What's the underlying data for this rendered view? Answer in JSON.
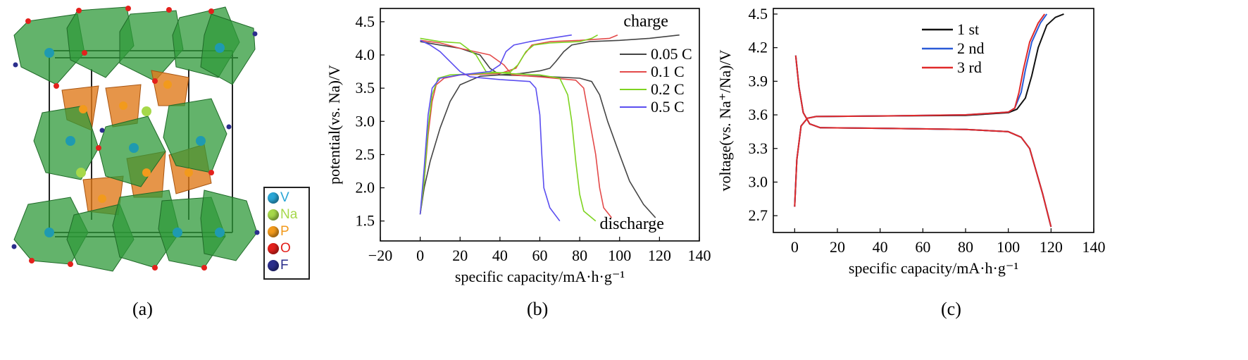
{
  "panels": {
    "a": {
      "label": "(a)",
      "legend": [
        {
          "symbol": "V",
          "color": "#2aa6d6"
        },
        {
          "symbol": "Na",
          "color": "#a6d84a"
        },
        {
          "symbol": "P",
          "color": "#f29a1c"
        },
        {
          "symbol": "O",
          "color": "#e3211c"
        },
        {
          "symbol": "F",
          "color": "#2b2e8c"
        }
      ]
    },
    "b": {
      "label": "(b)"
    },
    "c": {
      "label": "(c)"
    }
  },
  "chart_data": [
    {
      "type": "line",
      "panel": "b",
      "xlabel": "specific capacity/mA·h·g⁻¹",
      "ylabel": "potential(vs. Na)/V",
      "xlim": [
        -20,
        140
      ],
      "ylim": [
        1.2,
        4.7
      ],
      "xticks": [
        -20,
        0,
        20,
        40,
        60,
        80,
        100,
        120,
        140
      ],
      "yticks": [
        1.5,
        2.0,
        2.5,
        3.0,
        3.5,
        4.0,
        4.5
      ],
      "annotations": [
        "charge",
        "discharge"
      ],
      "legend_position": "right",
      "series": [
        {
          "name": "0.05 C",
          "color": "#444444",
          "charge": [
            [
              0,
              1.6
            ],
            [
              2,
              2.0
            ],
            [
              5,
              2.4
            ],
            [
              10,
              2.9
            ],
            [
              15,
              3.3
            ],
            [
              20,
              3.55
            ],
            [
              30,
              3.68
            ],
            [
              50,
              3.72
            ],
            [
              60,
              3.76
            ],
            [
              65,
              3.8
            ],
            [
              68,
              3.9
            ],
            [
              72,
              4.05
            ],
            [
              76,
              4.15
            ],
            [
              85,
              4.2
            ],
            [
              100,
              4.22
            ],
            [
              115,
              4.25
            ],
            [
              130,
              4.3
            ]
          ],
          "discharge": [
            [
              0,
              4.2
            ],
            [
              10,
              4.15
            ],
            [
              20,
              4.1
            ],
            [
              30,
              4.0
            ],
            [
              35,
              3.8
            ],
            [
              40,
              3.7
            ],
            [
              60,
              3.68
            ],
            [
              80,
              3.65
            ],
            [
              86,
              3.6
            ],
            [
              90,
              3.4
            ],
            [
              94,
              3.0
            ],
            [
              100,
              2.5
            ],
            [
              105,
              2.1
            ],
            [
              112,
              1.75
            ],
            [
              118,
              1.55
            ]
          ]
        },
        {
          "name": "0.1 C",
          "color": "#e34a4a",
          "charge": [
            [
              0,
              1.6
            ],
            [
              2,
              2.1
            ],
            [
              4,
              2.8
            ],
            [
              6,
              3.3
            ],
            [
              8,
              3.55
            ],
            [
              12,
              3.65
            ],
            [
              20,
              3.7
            ],
            [
              40,
              3.72
            ],
            [
              48,
              3.8
            ],
            [
              52,
              4.0
            ],
            [
              56,
              4.15
            ],
            [
              65,
              4.2
            ],
            [
              80,
              4.22
            ],
            [
              95,
              4.25
            ],
            [
              99,
              4.3
            ]
          ],
          "discharge": [
            [
              0,
              4.22
            ],
            [
              10,
              4.18
            ],
            [
              20,
              4.1
            ],
            [
              35,
              4.0
            ],
            [
              42,
              3.85
            ],
            [
              46,
              3.7
            ],
            [
              60,
              3.67
            ],
            [
              78,
              3.62
            ],
            [
              82,
              3.5
            ],
            [
              85,
              3.0
            ],
            [
              88,
              2.5
            ],
            [
              90,
              2.0
            ],
            [
              92,
              1.7
            ],
            [
              96,
              1.55
            ]
          ]
        },
        {
          "name": "0.2 C",
          "color": "#7ed321",
          "charge": [
            [
              0,
              1.6
            ],
            [
              2,
              2.1
            ],
            [
              4,
              2.9
            ],
            [
              6,
              3.4
            ],
            [
              9,
              3.65
            ],
            [
              15,
              3.7
            ],
            [
              30,
              3.72
            ],
            [
              45,
              3.74
            ],
            [
              49,
              3.85
            ],
            [
              53,
              4.05
            ],
            [
              57,
              4.15
            ],
            [
              65,
              4.18
            ],
            [
              80,
              4.2
            ],
            [
              86,
              4.25
            ],
            [
              89,
              4.3
            ]
          ],
          "discharge": [
            [
              0,
              4.25
            ],
            [
              10,
              4.2
            ],
            [
              20,
              4.18
            ],
            [
              28,
              4.0
            ],
            [
              33,
              3.75
            ],
            [
              45,
              3.72
            ],
            [
              60,
              3.7
            ],
            [
              70,
              3.65
            ],
            [
              74,
              3.4
            ],
            [
              76,
              3.0
            ],
            [
              78,
              2.4
            ],
            [
              80,
              1.9
            ],
            [
              82,
              1.65
            ],
            [
              88,
              1.5
            ]
          ]
        },
        {
          "name": "0.5 C",
          "color": "#5b4ef0",
          "charge": [
            [
              0,
              1.6
            ],
            [
              2,
              2.3
            ],
            [
              4,
              3.1
            ],
            [
              6,
              3.5
            ],
            [
              10,
              3.65
            ],
            [
              20,
              3.7
            ],
            [
              35,
              3.75
            ],
            [
              40,
              3.85
            ],
            [
              43,
              4.05
            ],
            [
              47,
              4.15
            ],
            [
              55,
              4.2
            ],
            [
              65,
              4.25
            ],
            [
              76,
              4.3
            ]
          ],
          "discharge": [
            [
              0,
              4.22
            ],
            [
              5,
              4.15
            ],
            [
              10,
              4.05
            ],
            [
              15,
              3.9
            ],
            [
              20,
              3.75
            ],
            [
              25,
              3.67
            ],
            [
              40,
              3.63
            ],
            [
              55,
              3.6
            ],
            [
              58,
              3.5
            ],
            [
              60,
              3.1
            ],
            [
              61,
              2.5
            ],
            [
              62,
              2.0
            ],
            [
              65,
              1.7
            ],
            [
              70,
              1.5
            ]
          ]
        }
      ]
    },
    {
      "type": "line",
      "panel": "c",
      "xlabel": "specific capacity/mA·h·g⁻¹",
      "ylabel": "voltage(vs. Na⁺/Na)/V",
      "xlim": [
        -10,
        140
      ],
      "ylim": [
        2.55,
        4.55
      ],
      "xticks": [
        0,
        20,
        40,
        60,
        80,
        100,
        120,
        140
      ],
      "yticks": [
        2.7,
        3.0,
        3.3,
        3.6,
        3.9,
        4.2,
        4.5
      ],
      "legend_position": "top-center",
      "series": [
        {
          "name": "1 st",
          "color": "#111111",
          "charge": [
            [
              0,
              2.78
            ],
            [
              1,
              3.2
            ],
            [
              3,
              3.5
            ],
            [
              6,
              3.57
            ],
            [
              10,
              3.585
            ],
            [
              40,
              3.59
            ],
            [
              80,
              3.595
            ],
            [
              100,
              3.62
            ],
            [
              104,
              3.65
            ],
            [
              108,
              3.75
            ],
            [
              111,
              3.95
            ],
            [
              114,
              4.2
            ],
            [
              118,
              4.4
            ],
            [
              122,
              4.47
            ],
            [
              126,
              4.5
            ]
          ],
          "discharge": [
            [
              0.5,
              4.13
            ],
            [
              2,
              3.85
            ],
            [
              4,
              3.62
            ],
            [
              7,
              3.52
            ],
            [
              12,
              3.485
            ],
            [
              40,
              3.48
            ],
            [
              80,
              3.47
            ],
            [
              100,
              3.45
            ],
            [
              106,
              3.4
            ],
            [
              110,
              3.3
            ],
            [
              113,
              3.1
            ],
            [
              116,
              2.9
            ],
            [
              118,
              2.75
            ],
            [
              120,
              2.6
            ]
          ]
        },
        {
          "name": "2 nd",
          "color": "#2a5bd7",
          "charge": [
            [
              0,
              2.78
            ],
            [
              1,
              3.2
            ],
            [
              3,
              3.5
            ],
            [
              6,
              3.57
            ],
            [
              10,
              3.585
            ],
            [
              40,
              3.59
            ],
            [
              80,
              3.6
            ],
            [
              100,
              3.625
            ],
            [
              103,
              3.66
            ],
            [
              106,
              3.8
            ],
            [
              108,
              4.0
            ],
            [
              111,
              4.25
            ],
            [
              115,
              4.42
            ],
            [
              118,
              4.5
            ]
          ],
          "discharge": [
            [
              0.5,
              4.13
            ],
            [
              2,
              3.85
            ],
            [
              4,
              3.62
            ],
            [
              7,
              3.52
            ],
            [
              12,
              3.485
            ],
            [
              40,
              3.48
            ],
            [
              80,
              3.47
            ],
            [
              100,
              3.45
            ],
            [
              106,
              3.4
            ],
            [
              110,
              3.3
            ],
            [
              113,
              3.1
            ],
            [
              116,
              2.9
            ],
            [
              118,
              2.75
            ],
            [
              120,
              2.6
            ]
          ]
        },
        {
          "name": "3 rd",
          "color": "#e02a2a",
          "charge": [
            [
              0,
              2.78
            ],
            [
              1,
              3.2
            ],
            [
              3,
              3.5
            ],
            [
              6,
              3.57
            ],
            [
              10,
              3.585
            ],
            [
              40,
              3.59
            ],
            [
              80,
              3.6
            ],
            [
              100,
              3.625
            ],
            [
              103,
              3.66
            ],
            [
              105,
              3.8
            ],
            [
              107,
              4.0
            ],
            [
              110,
              4.25
            ],
            [
              114,
              4.42
            ],
            [
              117,
              4.5
            ]
          ],
          "discharge": [
            [
              0.5,
              4.13
            ],
            [
              2,
              3.85
            ],
            [
              4,
              3.62
            ],
            [
              7,
              3.52
            ],
            [
              12,
              3.485
            ],
            [
              40,
              3.48
            ],
            [
              80,
              3.47
            ],
            [
              100,
              3.45
            ],
            [
              106,
              3.4
            ],
            [
              110,
              3.3
            ],
            [
              113,
              3.1
            ],
            [
              116,
              2.9
            ],
            [
              118,
              2.75
            ],
            [
              120,
              2.6
            ]
          ]
        }
      ]
    }
  ]
}
